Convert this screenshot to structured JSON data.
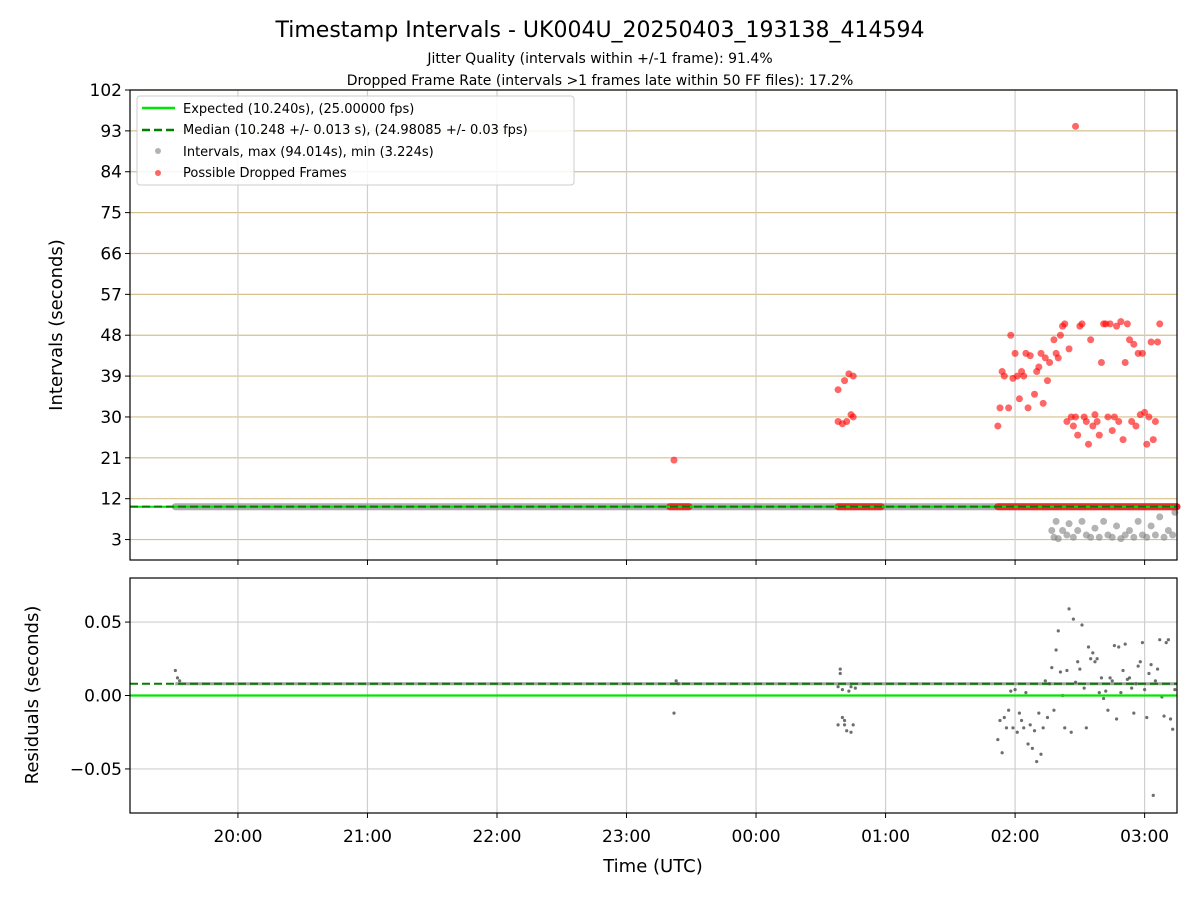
{
  "chart_data": [
    {
      "type": "scatter",
      "title": "Timestamp Intervals - UK004U_20250403_193138_414594",
      "subtitle_1": "Jitter Quality (intervals within +/-1 frame): 91.4%",
      "subtitle_2": "Dropped Frame Rate (intervals >1 frames late within 50 FF files): 17.2%",
      "xlabel": "",
      "ylabel": "Intervals (seconds)",
      "xlim": [
        "19:10",
        "03:15"
      ],
      "ylim": [
        -1.5,
        102
      ],
      "yticks": [
        3,
        12,
        21,
        30,
        39,
        48,
        57,
        66,
        75,
        84,
        93,
        102
      ],
      "grid": true,
      "legend_position": "top-left",
      "legend": [
        "Expected (10.240s), (25.00000 fps)",
        "Median (10.248 +/- 0.013 s), (24.98085 +/- 0.03 fps)",
        "Intervals, max (94.014s), min (3.224s)",
        "Possible Dropped Frames"
      ],
      "expected": 10.24,
      "median": 10.248,
      "colors": {
        "expected": "#00e600",
        "median": "#008000",
        "intervals": "#808080",
        "dropped": "#ff0000",
        "hgrid": "#d4c18b",
        "vgrid": "#cfcfcf"
      },
      "baseline_range": [
        "19:31",
        "03:15"
      ],
      "dropped_clusters": [
        {
          "from": "23:20",
          "to": "23:29",
          "y": 10.24
        },
        {
          "from": "00:38",
          "to": "00:58",
          "y": 10.24
        },
        {
          "from": "01:52",
          "to": "03:15",
          "y": 10.24
        }
      ],
      "dropped_points": [
        {
          "x": "23:22",
          "y": 20.5
        },
        {
          "x": "00:38",
          "y": 36
        },
        {
          "x": "00:41",
          "y": 38
        },
        {
          "x": "00:43",
          "y": 39.5
        },
        {
          "x": "00:45",
          "y": 39
        },
        {
          "x": "00:38",
          "y": 29
        },
        {
          "x": "00:40",
          "y": 28.5
        },
        {
          "x": "00:42",
          "y": 29
        },
        {
          "x": "00:44",
          "y": 30.5
        },
        {
          "x": "00:45",
          "y": 30
        },
        {
          "x": "01:52",
          "y": 28
        },
        {
          "x": "01:53",
          "y": 32
        },
        {
          "x": "01:54",
          "y": 40
        },
        {
          "x": "01:55",
          "y": 39
        },
        {
          "x": "01:57",
          "y": 32
        },
        {
          "x": "01:58",
          "y": 48
        },
        {
          "x": "01:59",
          "y": 38.5
        },
        {
          "x": "02:00",
          "y": 44
        },
        {
          "x": "02:01",
          "y": 39
        },
        {
          "x": "02:02",
          "y": 34
        },
        {
          "x": "02:03",
          "y": 40
        },
        {
          "x": "02:04",
          "y": 39
        },
        {
          "x": "02:05",
          "y": 44
        },
        {
          "x": "02:06",
          "y": 32
        },
        {
          "x": "02:07",
          "y": 43.5
        },
        {
          "x": "02:09",
          "y": 35
        },
        {
          "x": "02:10",
          "y": 40
        },
        {
          "x": "02:11",
          "y": 41
        },
        {
          "x": "02:12",
          "y": 44
        },
        {
          "x": "02:13",
          "y": 33
        },
        {
          "x": "02:14",
          "y": 43
        },
        {
          "x": "02:15",
          "y": 38
        },
        {
          "x": "02:16",
          "y": 42
        },
        {
          "x": "02:18",
          "y": 47
        },
        {
          "x": "02:19",
          "y": 44
        },
        {
          "x": "02:20",
          "y": 43
        },
        {
          "x": "02:21",
          "y": 48
        },
        {
          "x": "02:22",
          "y": 50
        },
        {
          "x": "02:23",
          "y": 50.5
        },
        {
          "x": "02:24",
          "y": 29
        },
        {
          "x": "02:25",
          "y": 45
        },
        {
          "x": "02:26",
          "y": 30
        },
        {
          "x": "02:27",
          "y": 28
        },
        {
          "x": "02:28",
          "y": 30
        },
        {
          "x": "02:29",
          "y": 26
        },
        {
          "x": "02:30",
          "y": 50
        },
        {
          "x": "02:31",
          "y": 50.5
        },
        {
          "x": "02:32",
          "y": 30
        },
        {
          "x": "02:33",
          "y": 29
        },
        {
          "x": "02:34",
          "y": 24
        },
        {
          "x": "02:35",
          "y": 47
        },
        {
          "x": "02:36",
          "y": 28
        },
        {
          "x": "02:37",
          "y": 30.5
        },
        {
          "x": "02:38",
          "y": 29
        },
        {
          "x": "02:39",
          "y": 26
        },
        {
          "x": "02:40",
          "y": 42
        },
        {
          "x": "02:41",
          "y": 50.5
        },
        {
          "x": "02:42",
          "y": 50.5
        },
        {
          "x": "02:43",
          "y": 30
        },
        {
          "x": "02:44",
          "y": 50.5
        },
        {
          "x": "02:45",
          "y": 27
        },
        {
          "x": "02:46",
          "y": 30
        },
        {
          "x": "02:47",
          "y": 50
        },
        {
          "x": "02:48",
          "y": 29
        },
        {
          "x": "02:49",
          "y": 51
        },
        {
          "x": "02:50",
          "y": 25
        },
        {
          "x": "02:51",
          "y": 42
        },
        {
          "x": "02:52",
          "y": 50.5
        },
        {
          "x": "02:53",
          "y": 47
        },
        {
          "x": "02:54",
          "y": 29
        },
        {
          "x": "02:55",
          "y": 46
        },
        {
          "x": "02:56",
          "y": 28
        },
        {
          "x": "02:57",
          "y": 44
        },
        {
          "x": "02:58",
          "y": 30.5
        },
        {
          "x": "02:59",
          "y": 44
        },
        {
          "x": "03:00",
          "y": 31
        },
        {
          "x": "03:01",
          "y": 24
        },
        {
          "x": "03:02",
          "y": 30
        },
        {
          "x": "03:03",
          "y": 46.5
        },
        {
          "x": "03:04",
          "y": 25
        },
        {
          "x": "03:05",
          "y": 29
        },
        {
          "x": "03:06",
          "y": 46.5
        },
        {
          "x": "03:07",
          "y": 50.5
        },
        {
          "x": "02:28",
          "y": 94
        }
      ],
      "gray_points": [
        {
          "x": "02:17",
          "y": 5
        },
        {
          "x": "02:18",
          "y": 3.5
        },
        {
          "x": "02:19",
          "y": 7
        },
        {
          "x": "02:20",
          "y": 3.2
        },
        {
          "x": "02:22",
          "y": 5
        },
        {
          "x": "02:24",
          "y": 4
        },
        {
          "x": "02:25",
          "y": 6.5
        },
        {
          "x": "02:27",
          "y": 3.5
        },
        {
          "x": "02:29",
          "y": 5
        },
        {
          "x": "02:31",
          "y": 7
        },
        {
          "x": "02:33",
          "y": 4
        },
        {
          "x": "02:35",
          "y": 3.5
        },
        {
          "x": "02:37",
          "y": 5.5
        },
        {
          "x": "02:39",
          "y": 3.5
        },
        {
          "x": "02:41",
          "y": 7
        },
        {
          "x": "02:43",
          "y": 4
        },
        {
          "x": "02:45",
          "y": 3.5
        },
        {
          "x": "02:47",
          "y": 6
        },
        {
          "x": "02:49",
          "y": 3.2
        },
        {
          "x": "02:51",
          "y": 4
        },
        {
          "x": "02:53",
          "y": 5
        },
        {
          "x": "02:55",
          "y": 3.5
        },
        {
          "x": "02:57",
          "y": 7
        },
        {
          "x": "02:59",
          "y": 4
        },
        {
          "x": "03:01",
          "y": 3.5
        },
        {
          "x": "03:03",
          "y": 6
        },
        {
          "x": "03:05",
          "y": 4
        },
        {
          "x": "03:07",
          "y": 8
        },
        {
          "x": "03:09",
          "y": 3.5
        },
        {
          "x": "03:11",
          "y": 5
        },
        {
          "x": "03:13",
          "y": 4
        },
        {
          "x": "03:14",
          "y": 9
        }
      ]
    },
    {
      "type": "scatter",
      "xlabel": "Time (UTC)",
      "ylabel": "Residuals (seconds)",
      "xlim": [
        "19:10",
        "03:15"
      ],
      "ylim": [
        -0.08,
        0.08
      ],
      "yticks": [
        0.05,
        0.0,
        -0.05
      ],
      "ytick_labels": [
        "0.05",
        "0.00",
        "−0.05"
      ],
      "xticks": [
        "20:00",
        "21:00",
        "22:00",
        "23:00",
        "00:00",
        "01:00",
        "02:00",
        "03:00"
      ],
      "grid": true,
      "expected_residual": 0.0,
      "median_residual": 0.008,
      "baseline_residual": 0.008,
      "baseline_range": [
        "19:31",
        "03:15"
      ],
      "residual_points": [
        {
          "x": "19:31",
          "y": 0.017
        },
        {
          "x": "19:32",
          "y": 0.012
        },
        {
          "x": "19:33",
          "y": 0.01
        },
        {
          "x": "23:22",
          "y": -0.012
        },
        {
          "x": "23:23",
          "y": 0.01
        },
        {
          "x": "23:24",
          "y": 0.008
        },
        {
          "x": "00:38",
          "y": 0.006
        },
        {
          "x": "00:38",
          "y": -0.02
        },
        {
          "x": "00:39",
          "y": 0.015
        },
        {
          "x": "00:39",
          "y": 0.018
        },
        {
          "x": "00:40",
          "y": -0.015
        },
        {
          "x": "00:40",
          "y": 0.004
        },
        {
          "x": "00:41",
          "y": -0.02
        },
        {
          "x": "00:41",
          "y": -0.017
        },
        {
          "x": "00:42",
          "y": -0.024
        },
        {
          "x": "00:43",
          "y": 0.003
        },
        {
          "x": "00:44",
          "y": -0.025
        },
        {
          "x": "00:44",
          "y": 0.006
        },
        {
          "x": "00:45",
          "y": -0.02
        },
        {
          "x": "00:46",
          "y": 0.005
        },
        {
          "x": "01:52",
          "y": -0.03
        },
        {
          "x": "01:53",
          "y": -0.017
        },
        {
          "x": "01:54",
          "y": -0.039
        },
        {
          "x": "01:55",
          "y": -0.015
        },
        {
          "x": "01:56",
          "y": -0.022
        },
        {
          "x": "01:57",
          "y": -0.01
        },
        {
          "x": "01:58",
          "y": 0.003
        },
        {
          "x": "01:59",
          "y": -0.022
        },
        {
          "x": "02:00",
          "y": 0.004
        },
        {
          "x": "02:01",
          "y": -0.025
        },
        {
          "x": "02:02",
          "y": -0.012
        },
        {
          "x": "02:03",
          "y": -0.017
        },
        {
          "x": "02:04",
          "y": -0.022
        },
        {
          "x": "02:05",
          "y": 0.002
        },
        {
          "x": "02:06",
          "y": -0.033
        },
        {
          "x": "02:07",
          "y": -0.02
        },
        {
          "x": "02:08",
          "y": -0.036
        },
        {
          "x": "02:09",
          "y": -0.024
        },
        {
          "x": "02:10",
          "y": -0.045
        },
        {
          "x": "02:11",
          "y": -0.012
        },
        {
          "x": "02:12",
          "y": -0.04
        },
        {
          "x": "02:13",
          "y": -0.022
        },
        {
          "x": "02:14",
          "y": 0.01
        },
        {
          "x": "02:15",
          "y": -0.015
        },
        {
          "x": "02:16",
          "y": 0.008
        },
        {
          "x": "02:17",
          "y": 0.019
        },
        {
          "x": "02:18",
          "y": -0.01
        },
        {
          "x": "02:19",
          "y": 0.031
        },
        {
          "x": "02:20",
          "y": 0.044
        },
        {
          "x": "02:21",
          "y": 0.016
        },
        {
          "x": "02:22",
          "y": 0.0
        },
        {
          "x": "02:23",
          "y": -0.022
        },
        {
          "x": "02:24",
          "y": 0.017
        },
        {
          "x": "02:25",
          "y": 0.059
        },
        {
          "x": "02:26",
          "y": -0.025
        },
        {
          "x": "02:27",
          "y": 0.052
        },
        {
          "x": "02:28",
          "y": 0.009
        },
        {
          "x": "02:29",
          "y": 0.023
        },
        {
          "x": "02:30",
          "y": 0.018
        },
        {
          "x": "02:31",
          "y": 0.048
        },
        {
          "x": "02:32",
          "y": 0.005
        },
        {
          "x": "02:33",
          "y": -0.022
        },
        {
          "x": "02:34",
          "y": 0.033
        },
        {
          "x": "02:35",
          "y": 0.025
        },
        {
          "x": "02:36",
          "y": 0.029
        },
        {
          "x": "02:37",
          "y": 0.023
        },
        {
          "x": "02:38",
          "y": 0.025
        },
        {
          "x": "02:39",
          "y": 0.002
        },
        {
          "x": "02:40",
          "y": 0.012
        },
        {
          "x": "02:41",
          "y": -0.002
        },
        {
          "x": "02:42",
          "y": 0.003
        },
        {
          "x": "02:43",
          "y": -0.01
        },
        {
          "x": "02:44",
          "y": 0.012
        },
        {
          "x": "02:45",
          "y": 0.01
        },
        {
          "x": "02:46",
          "y": 0.034
        },
        {
          "x": "02:47",
          "y": -0.016
        },
        {
          "x": "02:48",
          "y": 0.033
        },
        {
          "x": "02:49",
          "y": 0.002
        },
        {
          "x": "02:50",
          "y": 0.017
        },
        {
          "x": "02:51",
          "y": 0.035
        },
        {
          "x": "02:52",
          "y": 0.011
        },
        {
          "x": "02:53",
          "y": 0.012
        },
        {
          "x": "02:54",
          "y": 0.005
        },
        {
          "x": "02:55",
          "y": -0.012
        },
        {
          "x": "02:56",
          "y": 0.008
        },
        {
          "x": "02:57",
          "y": 0.02
        },
        {
          "x": "02:58",
          "y": 0.023
        },
        {
          "x": "02:59",
          "y": 0.036
        },
        {
          "x": "03:00",
          "y": 0.004
        },
        {
          "x": "03:01",
          "y": -0.015
        },
        {
          "x": "03:02",
          "y": 0.015
        },
        {
          "x": "03:03",
          "y": 0.021
        },
        {
          "x": "03:04",
          "y": -0.068
        },
        {
          "x": "03:05",
          "y": 0.01
        },
        {
          "x": "03:06",
          "y": 0.018
        },
        {
          "x": "03:07",
          "y": 0.038
        },
        {
          "x": "03:08",
          "y": -0.001
        },
        {
          "x": "03:09",
          "y": -0.014
        },
        {
          "x": "03:10",
          "y": 0.036
        },
        {
          "x": "03:11",
          "y": 0.038
        },
        {
          "x": "03:12",
          "y": -0.016
        },
        {
          "x": "03:13",
          "y": -0.023
        },
        {
          "x": "03:14",
          "y": 0.004
        }
      ]
    }
  ]
}
